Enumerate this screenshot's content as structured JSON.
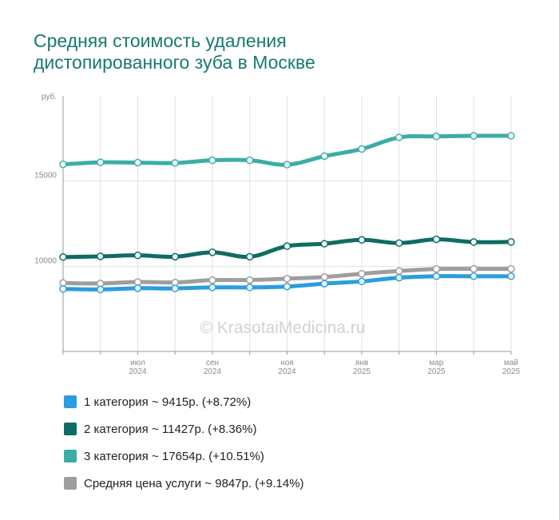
{
  "title_lines": [
    "Средняя стоимость удаления",
    "дистопированного зуба в Москве"
  ],
  "watermark": "© KrasotaiMedicina.ru",
  "chart_data": {
    "type": "line",
    "y_unit": "руб.",
    "ylim": [
      5000,
      20000
    ],
    "yticks": [
      10000,
      15000
    ],
    "ytick_labels": [
      "10000",
      "15000"
    ],
    "x": [
      "2024-05",
      "2024-06",
      "2024-07",
      "2024-08",
      "2024-09",
      "2024-10",
      "2024-11",
      "2024-12",
      "2025-01",
      "2025-02",
      "2025-03",
      "2025-04",
      "2025-05"
    ],
    "xtick_labels": [
      {
        "month": "июл",
        "year": "2024"
      },
      {
        "month": "сен",
        "year": "2024"
      },
      {
        "month": "ноя",
        "year": "2024"
      },
      {
        "month": "янв",
        "year": "2025"
      },
      {
        "month": "мар",
        "year": "2025"
      },
      {
        "month": "май",
        "year": "2025"
      }
    ],
    "grid": true,
    "series": [
      {
        "name": "3 категория ~ 17654р. (+10.51%)",
        "color": "#3aaea5",
        "values": [
          15980,
          16100,
          16080,
          16060,
          16220,
          16220,
          15960,
          16460,
          16880,
          17560,
          17620,
          17654,
          17654
        ]
      },
      {
        "name": "2 категория ~ 11427р. (+8.36%)",
        "color": "#0f6b63",
        "values": [
          10540,
          10580,
          10640,
          10560,
          10820,
          10560,
          11180,
          11320,
          11550,
          11360,
          11580,
          11420,
          11427
        ]
      },
      {
        "name": "Средняя цена услуги ~ 9847р. (+9.14%)",
        "color": "#9e9e9e",
        "values": [
          9020,
          8990,
          9080,
          9050,
          9190,
          9190,
          9270,
          9370,
          9560,
          9720,
          9840,
          9847,
          9847
        ]
      },
      {
        "name": "1 категория ~ 9415р. (+8.72%)",
        "color": "#2a9de0",
        "values": [
          8670,
          8640,
          8710,
          8700,
          8760,
          8760,
          8810,
          8980,
          9110,
          9330,
          9415,
          9415,
          9415
        ]
      }
    ],
    "legend": [
      {
        "label": "1 категория ~ 9415р. (+8.72%)",
        "color": "#2a9de0"
      },
      {
        "label": "2 категория ~ 11427р. (+8.36%)",
        "color": "#0f6b63"
      },
      {
        "label": "3 категория ~ 17654р. (+10.51%)",
        "color": "#3aaea5"
      },
      {
        "label": "Средняя цена услуги ~ 9847р. (+9.14%)",
        "color": "#9e9e9e"
      }
    ],
    "legend_position": "bottom"
  }
}
